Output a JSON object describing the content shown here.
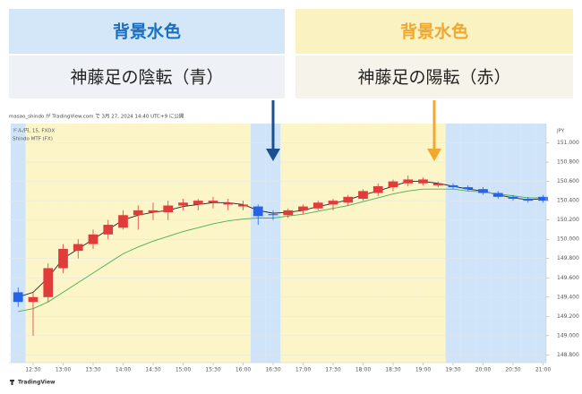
{
  "callouts": [
    {
      "heading": "背景水色",
      "caption": "神藤足の陰転（青）"
    },
    {
      "heading": "背景水色",
      "caption": "神藤足の陽転（赤）"
    }
  ],
  "chart_data": {
    "type": "candlestick",
    "title": "masao_shindo が TradingView.com で 3月 27, 2024 14:40 UTC+9 に公開",
    "symbol": "ドル/円, 15, FXDX",
    "indicator": "Shindo MTF (FX)",
    "currency": "JPY",
    "brand": "TradingView",
    "x": [
      null,
      "12:30",
      null,
      "13:00",
      null,
      "13:30",
      null,
      "14:00",
      null,
      "14:30",
      null,
      "15:00",
      null,
      "15:30",
      null,
      "16:00",
      null,
      "16:30",
      null,
      "17:00",
      null,
      "17:30",
      null,
      "18:00",
      null,
      "18:30",
      null,
      "19:00",
      null,
      "19:30",
      null,
      "20:00",
      null,
      "20:30",
      null,
      "21:00"
    ],
    "open": [
      149.45,
      149.35,
      149.4,
      149.7,
      149.88,
      149.95,
      150.05,
      150.12,
      150.25,
      150.28,
      150.28,
      150.35,
      150.36,
      150.38,
      150.38,
      150.36,
      150.34,
      150.26,
      150.25,
      150.3,
      150.32,
      150.36,
      150.38,
      150.42,
      150.48,
      150.54,
      150.58,
      150.62,
      150.58,
      150.56,
      150.54,
      150.52,
      150.48,
      150.44,
      150.42,
      150.4
    ],
    "high": [
      149.5,
      149.45,
      149.75,
      149.95,
      150.0,
      150.1,
      150.2,
      150.3,
      150.35,
      150.38,
      150.4,
      150.42,
      150.42,
      150.44,
      150.42,
      150.4,
      150.36,
      150.3,
      150.32,
      150.36,
      150.4,
      150.42,
      150.46,
      150.52,
      150.58,
      150.62,
      150.66,
      150.64,
      150.6,
      150.58,
      150.56,
      150.54,
      150.5,
      150.46,
      150.44,
      150.46
    ],
    "low": [
      149.3,
      149.0,
      149.35,
      149.65,
      149.8,
      149.9,
      150.0,
      150.1,
      150.1,
      150.2,
      150.2,
      150.3,
      150.3,
      150.32,
      150.3,
      150.3,
      150.15,
      150.2,
      150.22,
      150.26,
      150.3,
      150.3,
      150.35,
      150.4,
      150.45,
      150.5,
      150.55,
      150.56,
      150.54,
      150.52,
      150.5,
      150.46,
      150.42,
      150.4,
      150.38,
      150.38
    ],
    "close": [
      149.35,
      149.4,
      149.7,
      149.9,
      149.95,
      150.05,
      150.15,
      150.25,
      150.3,
      150.3,
      150.35,
      150.38,
      150.4,
      150.4,
      150.36,
      150.34,
      150.24,
      150.25,
      150.3,
      150.34,
      150.38,
      150.4,
      150.44,
      150.5,
      150.55,
      150.6,
      150.62,
      150.58,
      150.56,
      150.54,
      150.52,
      150.48,
      150.44,
      150.42,
      150.4,
      150.44
    ],
    "candle_colors": [
      "#2563eb",
      "#e23b3b",
      "#e23b3b",
      "#e23b3b",
      "#e23b3b",
      "#e23b3b",
      "#e23b3b",
      "#e23b3b",
      "#e23b3b",
      "#e23b3b",
      "#e23b3b",
      "#e23b3b",
      "#e23b3b",
      "#e23b3b",
      "#e23b3b",
      "#e23b3b",
      "#2563eb",
      "#2563eb",
      "#e23b3b",
      "#e23b3b",
      "#e23b3b",
      "#e23b3b",
      "#e23b3b",
      "#e23b3b",
      "#e23b3b",
      "#e23b3b",
      "#e23b3b",
      "#e23b3b",
      "#e23b3b",
      "#2563eb",
      "#2563eb",
      "#2563eb",
      "#2563eb",
      "#2563eb",
      "#2563eb",
      "#2563eb"
    ],
    "bg_colors": [
      "#cfe4f8",
      "#fbf5c8",
      "#fbf5c8",
      "#fbf5c8",
      "#fbf5c8",
      "#fbf5c8",
      "#fbf5c8",
      "#fbf5c8",
      "#fbf5c8",
      "#fbf5c8",
      "#fbf5c8",
      "#fbf5c8",
      "#fbf5c8",
      "#fbf5c8",
      "#fbf5c8",
      "#fbf5c8",
      "#cfe4f8",
      "#cfe4f8",
      "#fbf5c8",
      "#fbf5c8",
      "#fbf5c8",
      "#fbf5c8",
      "#fbf5c8",
      "#fbf5c8",
      "#fbf5c8",
      "#fbf5c8",
      "#fbf5c8",
      "#fbf5c8",
      "#fbf5c8",
      "#cfe4f8",
      "#cfe4f8",
      "#cfe4f8",
      "#cfe4f8",
      "#cfe4f8",
      "#cfe4f8",
      "#cfe4f8"
    ],
    "series": [
      {
        "color": "#222222",
        "values": [
          149.4,
          149.45,
          149.6,
          149.8,
          149.9,
          150.0,
          150.1,
          150.2,
          150.25,
          150.28,
          150.3,
          150.34,
          150.36,
          150.38,
          150.38,
          150.36,
          150.3,
          150.27,
          150.28,
          150.3,
          150.34,
          150.37,
          150.41,
          150.46,
          150.5,
          150.55,
          150.6,
          150.6,
          150.58,
          150.55,
          150.52,
          150.5,
          150.46,
          150.43,
          150.41,
          150.42
        ]
      },
      {
        "color": "#4caf50",
        "values": [
          149.25,
          149.28,
          149.35,
          149.45,
          149.55,
          149.65,
          149.75,
          149.85,
          149.92,
          149.98,
          150.03,
          150.08,
          150.12,
          150.16,
          150.19,
          150.21,
          150.22,
          150.22,
          150.24,
          150.26,
          150.29,
          150.32,
          150.35,
          150.39,
          150.43,
          150.47,
          150.5,
          150.52,
          150.52,
          150.52,
          150.5,
          150.49,
          150.47,
          150.45,
          150.43,
          150.43
        ]
      }
    ],
    "ylim": [
      148.72,
      151.2
    ],
    "yticks": [
      {
        "value": 148.8,
        "label": "148.800"
      },
      {
        "value": 149.0,
        "label": "149.000"
      },
      {
        "value": 149.2,
        "label": "149.200"
      },
      {
        "value": 149.4,
        "label": "149.400"
      },
      {
        "value": 149.6,
        "label": "149.600"
      },
      {
        "value": 149.8,
        "label": "149.800"
      },
      {
        "value": 150.0,
        "label": "150.000"
      },
      {
        "value": 150.2,
        "label": "150.200"
      },
      {
        "value": 150.4,
        "label": "150.400"
      },
      {
        "value": 150.6,
        "label": "150.600"
      },
      {
        "value": 150.8,
        "label": "150.800"
      },
      {
        "value": 151.0,
        "label": "151.000"
      }
    ],
    "grid": true
  }
}
